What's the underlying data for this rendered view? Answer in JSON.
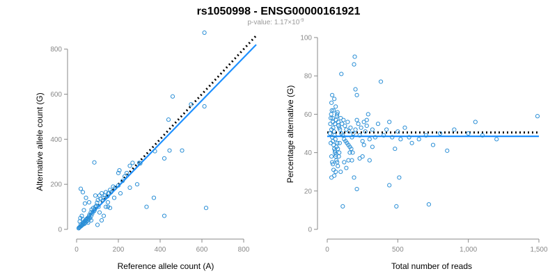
{
  "title": "rs1050998 - ENSG00000161921",
  "subtitle": {
    "prefix": "p-value: 1.17×10",
    "exponent": "-9"
  },
  "colors": {
    "points": "#2b8fd6",
    "fit": "#1e90ff",
    "reference": "#000000",
    "axis": "#888888"
  },
  "chart_data": [
    {
      "type": "scatter",
      "title": "",
      "xlabel": "Reference allele count (A)",
      "ylabel": "Alternative allele count (G)",
      "xlim": [
        0,
        860
      ],
      "ylim": [
        0,
        870
      ],
      "xticks": [
        0,
        200,
        400,
        600,
        800
      ],
      "yticks": [
        0,
        200,
        400,
        600,
        800
      ],
      "grid": false,
      "lines": [
        {
          "name": "",
          "style": "dotted",
          "color": "#000000",
          "x": [
            10,
            860
          ],
          "y": [
            10,
            860
          ]
        },
        {
          "name": "",
          "style": "solid",
          "color": "#1e90ff",
          "x": [
            10,
            860
          ],
          "y": [
            10,
            820
          ]
        }
      ],
      "points": [
        [
          612,
          873
        ],
        [
          460,
          590
        ],
        [
          548,
          555
        ],
        [
          612,
          546
        ],
        [
          440,
          487
        ],
        [
          445,
          350
        ],
        [
          505,
          350
        ],
        [
          420,
          315
        ],
        [
          375,
          347
        ],
        [
          305,
          293
        ],
        [
          300,
          295
        ],
        [
          268,
          295
        ],
        [
          255,
          282
        ],
        [
          240,
          250
        ],
        [
          230,
          235
        ],
        [
          205,
          262
        ],
        [
          200,
          250
        ],
        [
          85,
          297
        ],
        [
          290,
          200
        ],
        [
          255,
          185
        ],
        [
          220,
          215
        ],
        [
          200,
          195
        ],
        [
          185,
          185
        ],
        [
          175,
          190
        ],
        [
          165,
          165
        ],
        [
          160,
          175
        ],
        [
          152,
          160
        ],
        [
          148,
          147
        ],
        [
          140,
          165
        ],
        [
          135,
          150
        ],
        [
          130,
          140
        ],
        [
          125,
          128
        ],
        [
          120,
          160
        ],
        [
          115,
          135
        ],
        [
          110,
          150
        ],
        [
          105,
          100
        ],
        [
          102,
          130
        ],
        [
          98,
          118
        ],
        [
          95,
          105
        ],
        [
          90,
          100
        ],
        [
          88,
          90
        ],
        [
          85,
          82
        ],
        [
          80,
          95
        ],
        [
          78,
          78
        ],
        [
          75,
          70
        ],
        [
          72,
          88
        ],
        [
          70,
          60
        ],
        [
          68,
          75
        ],
        [
          65,
          50
        ],
        [
          62,
          65
        ],
        [
          60,
          58
        ],
        [
          58,
          45
        ],
        [
          55,
          52
        ],
        [
          52,
          40
        ],
        [
          50,
          48
        ],
        [
          48,
          35
        ],
        [
          45,
          42
        ],
        [
          42,
          30
        ],
        [
          40,
          38
        ],
        [
          38,
          25
        ],
        [
          35,
          32
        ],
        [
          32,
          22
        ],
        [
          30,
          28
        ],
        [
          28,
          20
        ],
        [
          25,
          18
        ],
        [
          22,
          15
        ],
        [
          20,
          22
        ],
        [
          18,
          12
        ],
        [
          15,
          10
        ],
        [
          12,
          8
        ],
        [
          10,
          5
        ],
        [
          20,
          180
        ],
        [
          30,
          165
        ],
        [
          45,
          140
        ],
        [
          35,
          85
        ],
        [
          25,
          60
        ],
        [
          18,
          50
        ],
        [
          15,
          35
        ],
        [
          30,
          45
        ],
        [
          55,
          30
        ],
        [
          70,
          40
        ],
        [
          100,
          20
        ],
        [
          150,
          100
        ],
        [
          160,
          95
        ],
        [
          130,
          60
        ],
        [
          110,
          75
        ],
        [
          120,
          40
        ],
        [
          335,
          100
        ],
        [
          370,
          140
        ],
        [
          420,
          60
        ],
        [
          620,
          95
        ],
        [
          40,
          115
        ],
        [
          60,
          120
        ],
        [
          90,
          150
        ],
        [
          140,
          100
        ],
        [
          180,
          140
        ],
        [
          210,
          160
        ],
        [
          150,
          120
        ]
      ]
    },
    {
      "type": "scatter",
      "title": "",
      "xlabel": "Total number of reads",
      "ylabel": "Percentage alternative (G)",
      "xlim": [
        0,
        1500
      ],
      "ylim": [
        0,
        100
      ],
      "xticks": [
        0,
        500,
        1000,
        1500
      ],
      "xticklabels": [
        "0",
        "500",
        "1,000",
        "1,500"
      ],
      "yticks": [
        0,
        20,
        40,
        60,
        80,
        100
      ],
      "grid": false,
      "lines": [
        {
          "name": "",
          "style": "dotted",
          "color": "#000000",
          "x": [
            0,
            1500
          ],
          "y": [
            50.5,
            50.5
          ]
        },
        {
          "name": "",
          "style": "solid",
          "color": "#1e90ff",
          "x": [
            0,
            1500
          ],
          "y": [
            48.5,
            48.5
          ]
        }
      ],
      "points": [
        [
          195,
          90
        ],
        [
          190,
          86
        ],
        [
          100,
          81
        ],
        [
          380,
          77
        ],
        [
          200,
          73
        ],
        [
          210,
          70
        ],
        [
          35,
          70
        ],
        [
          30,
          66
        ],
        [
          50,
          68
        ],
        [
          60,
          64
        ],
        [
          45,
          62
        ],
        [
          70,
          60
        ],
        [
          25,
          58
        ],
        [
          40,
          56
        ],
        [
          55,
          55
        ],
        [
          80,
          54
        ],
        [
          90,
          52
        ],
        [
          100,
          50
        ],
        [
          110,
          49
        ],
        [
          120,
          47
        ],
        [
          130,
          46
        ],
        [
          140,
          45
        ],
        [
          150,
          44
        ],
        [
          160,
          43
        ],
        [
          170,
          42
        ],
        [
          30,
          52
        ],
        [
          35,
          48
        ],
        [
          40,
          46
        ],
        [
          45,
          44
        ],
        [
          50,
          42
        ],
        [
          55,
          40
        ],
        [
          60,
          38
        ],
        [
          65,
          36
        ],
        [
          70,
          35
        ],
        [
          75,
          33
        ],
        [
          30,
          38
        ],
        [
          35,
          35
        ],
        [
          25,
          45
        ],
        [
          20,
          50
        ],
        [
          22,
          55
        ],
        [
          28,
          60
        ],
        [
          33,
          62
        ],
        [
          38,
          58
        ],
        [
          42,
          53
        ],
        [
          48,
          51
        ],
        [
          52,
          49
        ],
        [
          58,
          47
        ],
        [
          63,
          57
        ],
        [
          68,
          59
        ],
        [
          73,
          61
        ],
        [
          78,
          56
        ],
        [
          85,
          53
        ],
        [
          95,
          58
        ],
        [
          105,
          55
        ],
        [
          115,
          57
        ],
        [
          125,
          54
        ],
        [
          135,
          52
        ],
        [
          145,
          56
        ],
        [
          155,
          51
        ],
        [
          165,
          53
        ],
        [
          175,
          48
        ],
        [
          185,
          50
        ],
        [
          200,
          52
        ],
        [
          210,
          57
        ],
        [
          220,
          55
        ],
        [
          230,
          49
        ],
        [
          240,
          53
        ],
        [
          250,
          46
        ],
        [
          260,
          56
        ],
        [
          270,
          51
        ],
        [
          280,
          54
        ],
        [
          300,
          47
        ],
        [
          320,
          52
        ],
        [
          340,
          48
        ],
        [
          360,
          55
        ],
        [
          400,
          49
        ],
        [
          420,
          52
        ],
        [
          440,
          56
        ],
        [
          460,
          48
        ],
        [
          480,
          42
        ],
        [
          500,
          51
        ],
        [
          520,
          47
        ],
        [
          550,
          53
        ],
        [
          580,
          48
        ],
        [
          600,
          45
        ],
        [
          650,
          47
        ],
        [
          700,
          49
        ],
        [
          750,
          44
        ],
        [
          800,
          50
        ],
        [
          850,
          41
        ],
        [
          900,
          52
        ],
        [
          1000,
          50
        ],
        [
          1050,
          56
        ],
        [
          1100,
          49
        ],
        [
          1200,
          47
        ],
        [
          1490,
          59
        ],
        [
          30,
          27
        ],
        [
          95,
          30
        ],
        [
          110,
          12
        ],
        [
          150,
          36
        ],
        [
          175,
          36
        ],
        [
          190,
          27
        ],
        [
          210,
          21
        ],
        [
          230,
          37
        ],
        [
          300,
          36
        ],
        [
          440,
          23
        ],
        [
          490,
          12
        ],
        [
          510,
          27
        ],
        [
          720,
          13
        ],
        [
          60,
          30
        ],
        [
          75,
          42
        ],
        [
          85,
          40
        ],
        [
          120,
          35
        ],
        [
          135,
          32
        ],
        [
          160,
          40
        ],
        [
          180,
          40
        ],
        [
          250,
          38
        ],
        [
          260,
          44
        ],
        [
          280,
          57
        ],
        [
          290,
          60
        ],
        [
          320,
          43
        ],
        [
          40,
          34
        ],
        [
          45,
          31
        ],
        [
          50,
          28
        ],
        [
          55,
          41
        ],
        [
          62,
          39
        ],
        [
          66,
          43
        ],
        [
          72,
          45
        ],
        [
          82,
          38
        ],
        [
          88,
          45
        ]
      ]
    }
  ]
}
